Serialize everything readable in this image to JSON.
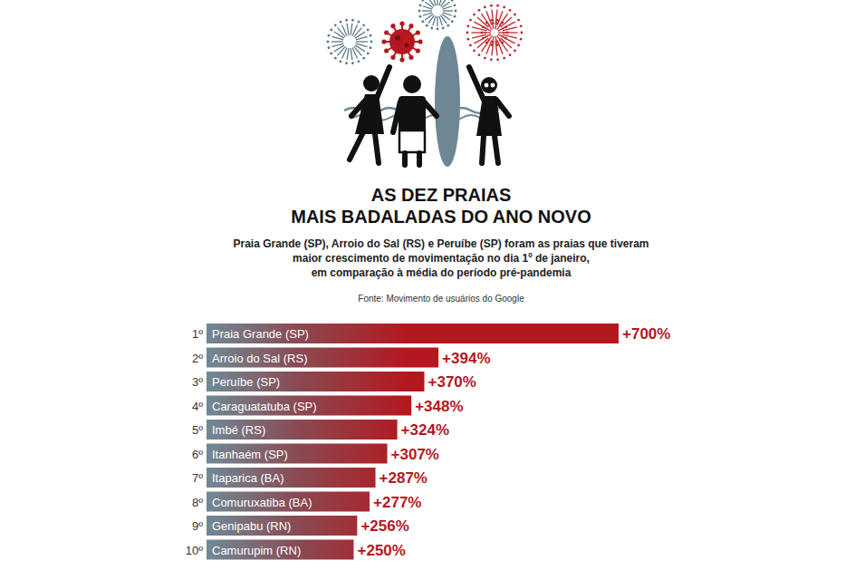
{
  "chart_data": {
    "type": "bar",
    "orientation": "horizontal",
    "title": "AS DEZ PRAIAS\nMAIS BADALADAS DO ANO NOVO",
    "subtitle": "Praia Grande (SP), Arroio do Sal (RS) e Peruíbe (SP) foram as praias que tiveram\nmaior crescimento de movimentação no dia 1º de janeiro,\nem comparação à média do período pré-pandemia",
    "source": "Fonte: Movimento de usuários do Google",
    "ranks": [
      "1º",
      "2º",
      "3º",
      "4º",
      "5º",
      "6º",
      "7º",
      "8º",
      "9º",
      "10º"
    ],
    "categories": [
      "Praia Grande (SP)",
      "Arroio do Sal (RS)",
      "Peruíbe (SP)",
      "Caraguatatuba (SP)",
      "Imbé (RS)",
      "Itanhaém (SP)",
      "Itaparica (BA)",
      "Comuruxatiba (BA)",
      "Genipabu (RN)",
      "Camurupim (RN)"
    ],
    "values": [
      700,
      394,
      370,
      348,
      324,
      307,
      287,
      277,
      256,
      250
    ],
    "value_labels": [
      "+700%",
      "+394%",
      "+370%",
      "+348%",
      "+324%",
      "+307%",
      "+287%",
      "+277%",
      "+256%",
      "+250%"
    ],
    "color": "#b5171f",
    "data_labels": true,
    "tick_labels": false
  }
}
